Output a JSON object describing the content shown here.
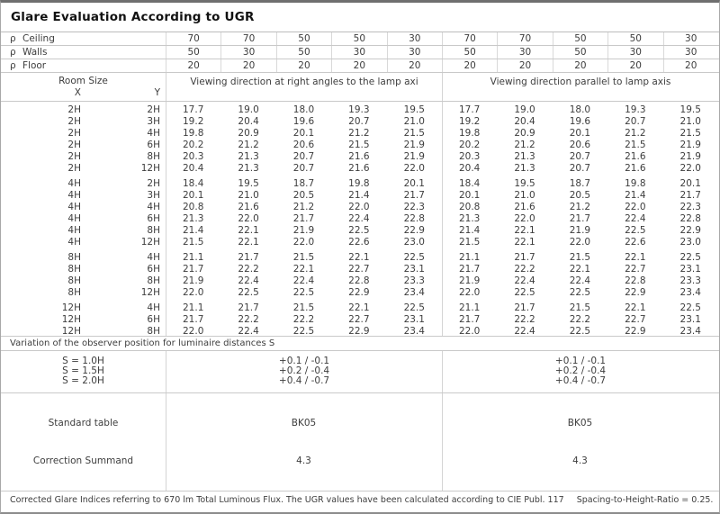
{
  "title": "Glare Evaluation According to UGR",
  "reflectance_rows": [
    {
      "symbol": "ρ",
      "label": "Ceiling",
      "values": [
        "70",
        "70",
        "50",
        "50",
        "30",
        "70",
        "70",
        "50",
        "50",
        "30"
      ]
    },
    {
      "symbol": "ρ",
      "label": "Walls",
      "values": [
        "50",
        "30",
        "50",
        "30",
        "30",
        "50",
        "30",
        "50",
        "30",
        "30"
      ]
    },
    {
      "symbol": "ρ",
      "label": "Floor",
      "values": [
        "20",
        "20",
        "20",
        "20",
        "20",
        "20",
        "20",
        "20",
        "20",
        "20"
      ]
    }
  ],
  "header": {
    "room_size": "Room Size",
    "x_label": "X",
    "y_label": "Y",
    "section_right_angles": "Viewing direction at right angles to the lamp axi",
    "section_parallel": "Viewing direction parallel to lamp axis"
  },
  "groups": [
    {
      "rows": [
        {
          "x": "2H",
          "y": "2H",
          "values": [
            "17.7",
            "19.0",
            "18.0",
            "19.3",
            "19.5",
            "17.7",
            "19.0",
            "18.0",
            "19.3",
            "19.5"
          ]
        },
        {
          "x": "2H",
          "y": "3H",
          "values": [
            "19.2",
            "20.4",
            "19.6",
            "20.7",
            "21.0",
            "19.2",
            "20.4",
            "19.6",
            "20.7",
            "21.0"
          ]
        },
        {
          "x": "2H",
          "y": "4H",
          "values": [
            "19.8",
            "20.9",
            "20.1",
            "21.2",
            "21.5",
            "19.8",
            "20.9",
            "20.1",
            "21.2",
            "21.5"
          ]
        },
        {
          "x": "2H",
          "y": "6H",
          "values": [
            "20.2",
            "21.2",
            "20.6",
            "21.5",
            "21.9",
            "20.2",
            "21.2",
            "20.6",
            "21.5",
            "21.9"
          ]
        },
        {
          "x": "2H",
          "y": "8H",
          "values": [
            "20.3",
            "21.3",
            "20.7",
            "21.6",
            "21.9",
            "20.3",
            "21.3",
            "20.7",
            "21.6",
            "21.9"
          ]
        },
        {
          "x": "2H",
          "y": "12H",
          "values": [
            "20.4",
            "21.3",
            "20.7",
            "21.6",
            "22.0",
            "20.4",
            "21.3",
            "20.7",
            "21.6",
            "22.0"
          ]
        }
      ]
    },
    {
      "rows": [
        {
          "x": "4H",
          "y": "2H",
          "values": [
            "18.4",
            "19.5",
            "18.7",
            "19.8",
            "20.1",
            "18.4",
            "19.5",
            "18.7",
            "19.8",
            "20.1"
          ]
        },
        {
          "x": "4H",
          "y": "3H",
          "values": [
            "20.1",
            "21.0",
            "20.5",
            "21.4",
            "21.7",
            "20.1",
            "21.0",
            "20.5",
            "21.4",
            "21.7"
          ]
        },
        {
          "x": "4H",
          "y": "4H",
          "values": [
            "20.8",
            "21.6",
            "21.2",
            "22.0",
            "22.3",
            "20.8",
            "21.6",
            "21.2",
            "22.0",
            "22.3"
          ]
        },
        {
          "x": "4H",
          "y": "6H",
          "values": [
            "21.3",
            "22.0",
            "21.7",
            "22.4",
            "22.8",
            "21.3",
            "22.0",
            "21.7",
            "22.4",
            "22.8"
          ]
        },
        {
          "x": "4H",
          "y": "8H",
          "values": [
            "21.4",
            "22.1",
            "21.9",
            "22.5",
            "22.9",
            "21.4",
            "22.1",
            "21.9",
            "22.5",
            "22.9"
          ]
        },
        {
          "x": "4H",
          "y": "12H",
          "values": [
            "21.5",
            "22.1",
            "22.0",
            "22.6",
            "23.0",
            "21.5",
            "22.1",
            "22.0",
            "22.6",
            "23.0"
          ]
        }
      ]
    },
    {
      "rows": [
        {
          "x": "8H",
          "y": "4H",
          "values": [
            "21.1",
            "21.7",
            "21.5",
            "22.1",
            "22.5",
            "21.1",
            "21.7",
            "21.5",
            "22.1",
            "22.5"
          ]
        },
        {
          "x": "8H",
          "y": "6H",
          "values": [
            "21.7",
            "22.2",
            "22.1",
            "22.7",
            "23.1",
            "21.7",
            "22.2",
            "22.1",
            "22.7",
            "23.1"
          ]
        },
        {
          "x": "8H",
          "y": "8H",
          "values": [
            "21.9",
            "22.4",
            "22.4",
            "22.8",
            "23.3",
            "21.9",
            "22.4",
            "22.4",
            "22.8",
            "23.3"
          ]
        },
        {
          "x": "8H",
          "y": "12H",
          "values": [
            "22.0",
            "22.5",
            "22.5",
            "22.9",
            "23.4",
            "22.0",
            "22.5",
            "22.5",
            "22.9",
            "23.4"
          ]
        }
      ]
    },
    {
      "rows": [
        {
          "x": "12H",
          "y": "4H",
          "values": [
            "21.1",
            "21.7",
            "21.5",
            "22.1",
            "22.5",
            "21.1",
            "21.7",
            "21.5",
            "22.1",
            "22.5"
          ]
        },
        {
          "x": "12H",
          "y": "6H",
          "values": [
            "21.7",
            "22.2",
            "22.2",
            "22.7",
            "23.1",
            "21.7",
            "22.2",
            "22.2",
            "22.7",
            "23.1"
          ]
        },
        {
          "x": "12H",
          "y": "8H",
          "values": [
            "22.0",
            "22.4",
            "22.5",
            "22.9",
            "23.4",
            "22.0",
            "22.4",
            "22.5",
            "22.9",
            "23.4"
          ]
        }
      ]
    }
  ],
  "variation": {
    "label": "Variation of the observer position for luminaire distances S",
    "rows": [
      {
        "label": "S = 1.0H",
        "left": "+0.1 / -0.1",
        "right": "+0.1 / -0.1"
      },
      {
        "label": "S = 1.5H",
        "left": "+0.2 / -0.4",
        "right": "+0.2 / -0.4"
      },
      {
        "label": "S = 2.0H",
        "left": "+0.4 / -0.7",
        "right": "+0.4 / -0.7"
      }
    ]
  },
  "summary_rows": [
    {
      "label": "Standard table",
      "left": "BK05",
      "right": "BK05"
    },
    {
      "label": "Correction Summand",
      "left": "4.3",
      "right": "4.3"
    }
  ],
  "footer": {
    "text": "Corrected Glare Indices referring to 670 lm Total Luminous Flux. The UGR values have been calculated according to CIE Publ. 117",
    "ratio": "Spacing-to-Height-Ratio = 0.25."
  }
}
